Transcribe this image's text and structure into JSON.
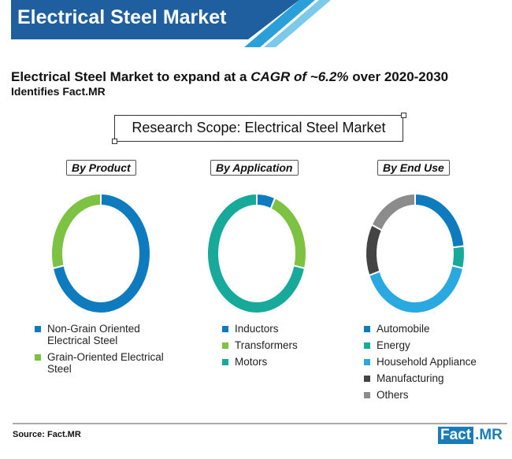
{
  "banner": {
    "title": "Electrical Steel Market",
    "colors": [
      "#1f5fa0",
      "#2a9fd8",
      "#7cc9ea"
    ]
  },
  "headline": {
    "pre": "Electrical Steel Market to expand at a ",
    "italic": "CAGR of ~6.2%",
    "post": " over 2020-2030"
  },
  "subheadline": "Identifies Fact.MR",
  "scope_title": "Research Scope: Electrical Steel Market",
  "chart_data": [
    {
      "type": "pie",
      "style": "donut",
      "title": "By Product",
      "categories": [
        "Non-Grain Oriented Electrical Steel",
        "Grain-Oriented Electrical Steel"
      ],
      "values": [
        71,
        29
      ],
      "colors": [
        "#0d7bbd",
        "#7dc242"
      ]
    },
    {
      "type": "pie",
      "style": "donut",
      "title": "By Application",
      "categories": [
        "Inductors",
        "Transformers",
        "Motors"
      ],
      "values": [
        6,
        23,
        71
      ],
      "colors": [
        "#0d7bbd",
        "#7dc242",
        "#17a99a"
      ]
    },
    {
      "type": "pie",
      "style": "donut",
      "title": "By End Use",
      "categories": [
        "Automobile",
        "Energy",
        "Household Appliance",
        "Manufacturing",
        "Others"
      ],
      "values": [
        23,
        6,
        40,
        14,
        17
      ],
      "colors": [
        "#0d7bbd",
        "#17a99a",
        "#2aa9e0",
        "#444444",
        "#8c8c8c"
      ]
    }
  ],
  "footer": {
    "source": "Source: Fact.MR",
    "logo_a": "Fact",
    "logo_b": ".MR"
  }
}
